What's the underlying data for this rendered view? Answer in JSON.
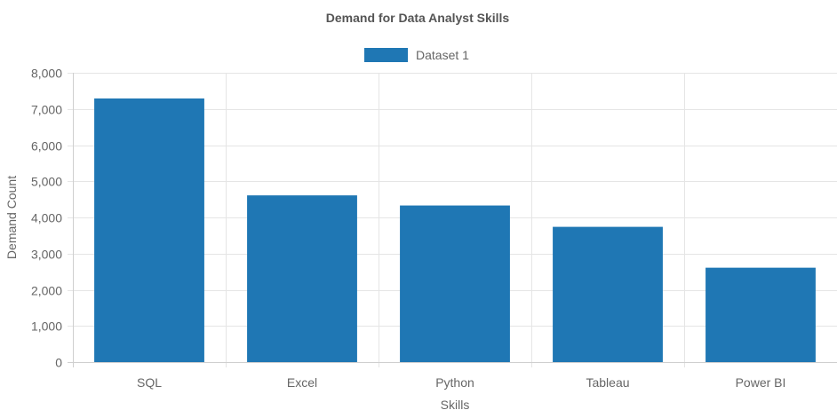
{
  "chart_data": {
    "type": "bar",
    "title": "Demand for Data Analyst Skills",
    "xlabel": "Skills",
    "ylabel": "Demand Count",
    "categories": [
      "SQL",
      "Excel",
      "Python",
      "Tableau",
      "Power BI"
    ],
    "series": [
      {
        "name": "Dataset 1",
        "values": [
          7290,
          4610,
          4330,
          3740,
          2610
        ],
        "color": "#1f77b4"
      }
    ],
    "ylim": [
      0,
      8000
    ],
    "yticks": [
      0,
      1000,
      2000,
      3000,
      4000,
      5000,
      6000,
      7000,
      8000
    ],
    "ytick_labels": [
      "0",
      "1,000",
      "2,000",
      "3,000",
      "4,000",
      "5,000",
      "6,000",
      "7,000",
      "8,000"
    ],
    "grid": true,
    "legend_position": "top-center"
  }
}
